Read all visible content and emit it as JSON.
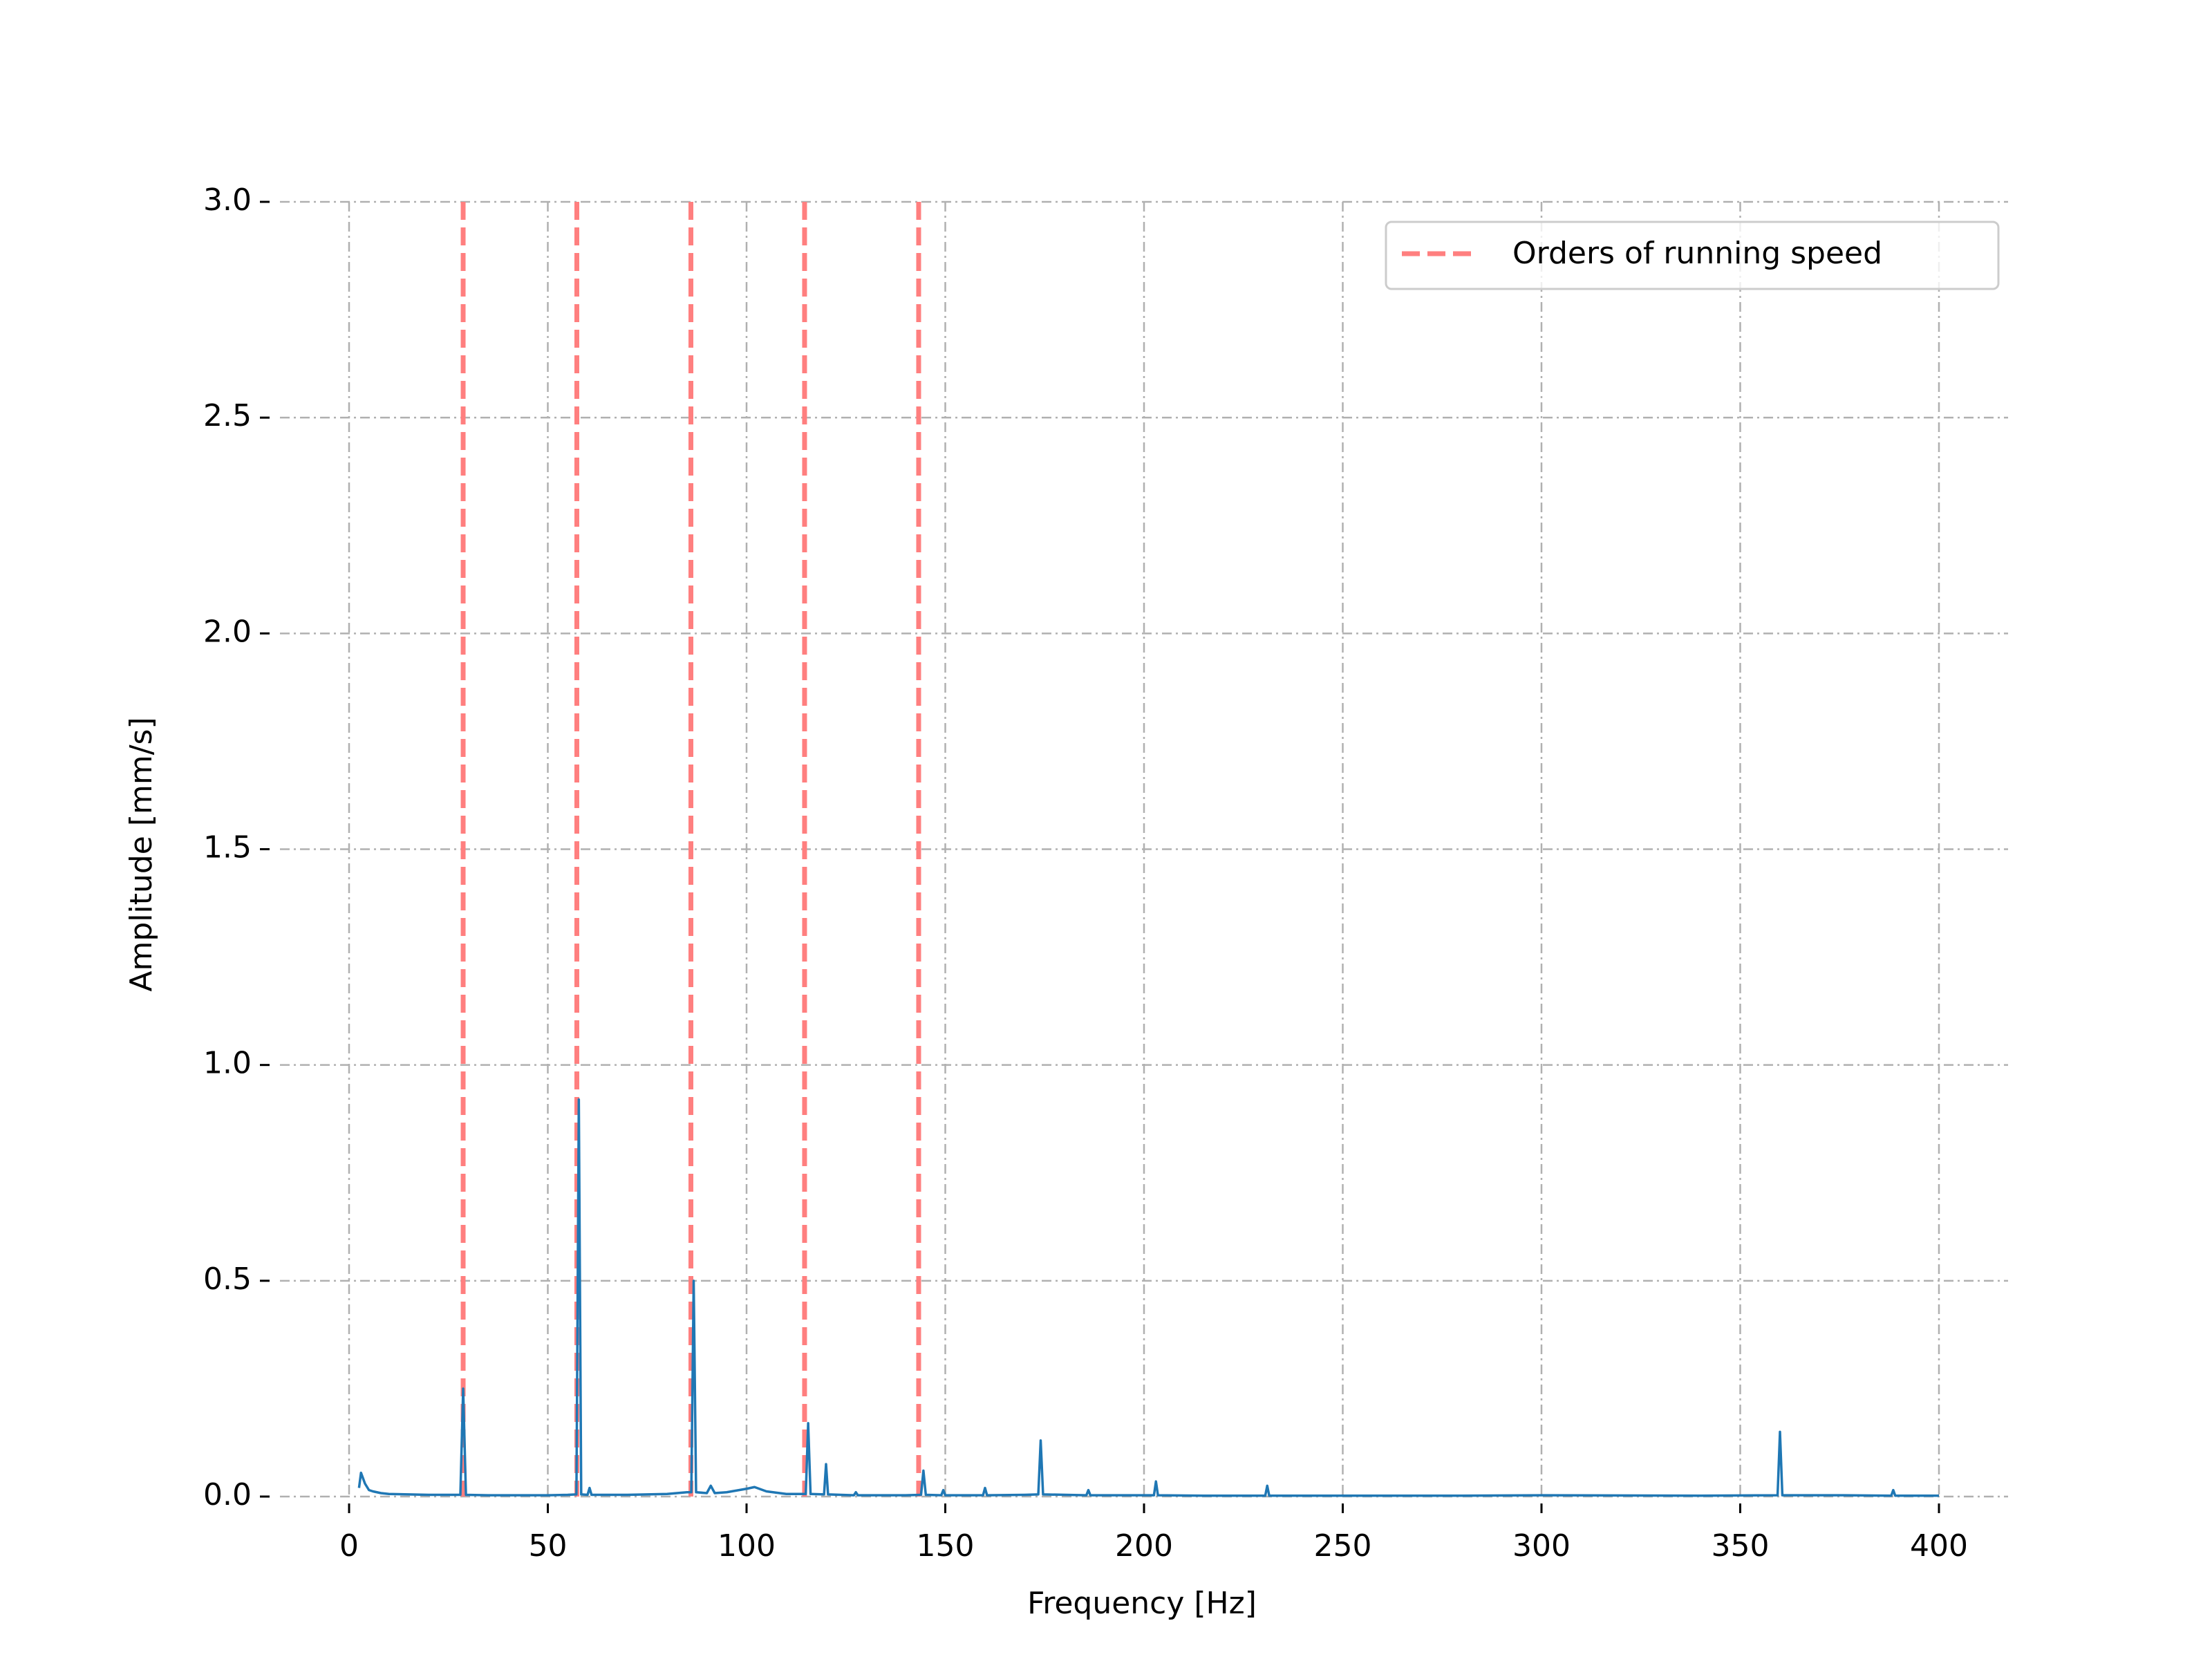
{
  "chart_data": {
    "type": "line",
    "xlabel": "Frequency [Hz]",
    "ylabel": "Amplitude [mm/s]",
    "xlim": [
      -20,
      420
    ],
    "ylim": [
      0,
      3
    ],
    "xticks": [
      0,
      50,
      100,
      150,
      200,
      250,
      300,
      350,
      400
    ],
    "yticks": [
      {
        "value": 0,
        "label": "0.0"
      },
      0.5,
      {
        "value": 1,
        "label": "1.0"
      },
      1.5,
      {
        "value": 2,
        "label": "2.0"
      },
      2.5,
      {
        "value": 3,
        "label": "3.0"
      }
    ],
    "grid": true,
    "legend": "upper right",
    "series": [
      {
        "color": "#1f77b4",
        "x": [
          2.5,
          3,
          4,
          5,
          6,
          8,
          10,
          15,
          20,
          25,
          28,
          28.7,
          29.4,
          35,
          40,
          45,
          50,
          55,
          57.2,
          57.8,
          58.4,
          60,
          60.5,
          61,
          65,
          70,
          75,
          80,
          85,
          86.1,
          86.7,
          87.3,
          90,
          91,
          92,
          95,
          100,
          102,
          105,
          110,
          114.9,
          115.5,
          116.1,
          119.5,
          120,
          120.5,
          127,
          127.5,
          128,
          135,
          140,
          143.9,
          144.5,
          145.1,
          149,
          149.5,
          150,
          159.5,
          160,
          160.5,
          170,
          173.4,
          174,
          174.6,
          185.5,
          186,
          186.5,
          195,
          202.5,
          203,
          203.5,
          215,
          230.5,
          231,
          231.5,
          250,
          280,
          300,
          340,
          359.4,
          360,
          360.6,
          376,
          388,
          388.5,
          389,
          395,
          400
        ],
        "values": [
          0.02,
          0.055,
          0.03,
          0.015,
          0.012,
          0.008,
          0.006,
          0.005,
          0.004,
          0.004,
          0.004,
          0.25,
          0.004,
          0.003,
          0.003,
          0.003,
          0.003,
          0.004,
          0.005,
          0.92,
          0.005,
          0.004,
          0.02,
          0.004,
          0.004,
          0.004,
          0.005,
          0.006,
          0.01,
          0.01,
          0.5,
          0.01,
          0.008,
          0.025,
          0.008,
          0.01,
          0.018,
          0.022,
          0.012,
          0.006,
          0.006,
          0.17,
          0.006,
          0.005,
          0.075,
          0.005,
          0.003,
          0.01,
          0.003,
          0.003,
          0.003,
          0.004,
          0.06,
          0.004,
          0.003,
          0.015,
          0.003,
          0.003,
          0.02,
          0.003,
          0.004,
          0.005,
          0.13,
          0.005,
          0.003,
          0.015,
          0.003,
          0.003,
          0.003,
          0.035,
          0.003,
          0.002,
          0.002,
          0.025,
          0.002,
          0.002,
          0.002,
          0.003,
          0.002,
          0.003,
          0.15,
          0.003,
          0.003,
          0.002,
          0.015,
          0.002,
          0.002,
          0.002
        ]
      }
    ],
    "vlines": {
      "name": "Orders of running speed",
      "color": "#ff7f7f",
      "x": [
        28.7,
        57.3,
        86,
        114.6,
        143.3
      ]
    }
  }
}
